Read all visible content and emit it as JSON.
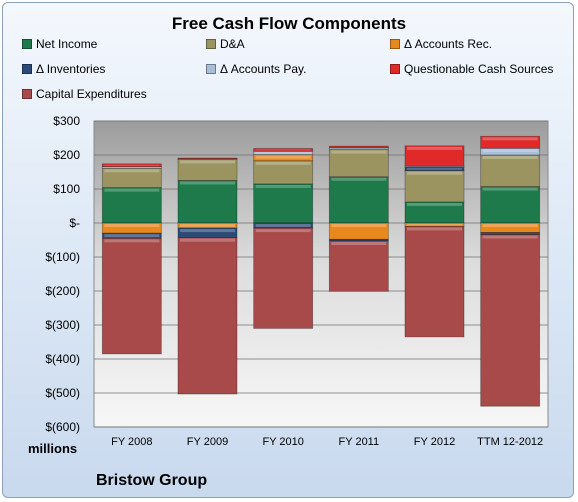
{
  "chart_data": {
    "type": "bar",
    "stacked": true,
    "title": "Free Cash Flow Components",
    "unit_label": "millions",
    "footer": "Bristow Group",
    "categories": [
      "FY 2008",
      "FY 2009",
      "FY 2010",
      "FY 2011",
      "FY 2012",
      "TTM 12-2012"
    ],
    "ylim": [
      -600,
      300
    ],
    "yticks": [
      300,
      200,
      100,
      0,
      -100,
      -200,
      -300,
      -400,
      -500,
      -600
    ],
    "ytick_labels": [
      "$300",
      "$200",
      "$100",
      "$-",
      "$(100)",
      "$(200)",
      "$(300)",
      "$(400)",
      "$(500)",
      "$(600)"
    ],
    "grid": true,
    "legend_position": "top",
    "series": [
      {
        "name": "Net Income",
        "color": "#1e7a4a",
        "values": [
          104,
          125,
          115,
          136,
          62,
          107
        ]
      },
      {
        "name": "D&A",
        "color": "#9b9460",
        "values": [
          57,
          62,
          68,
          80,
          92,
          93
        ]
      },
      {
        "name": "Δ Accounts Rec.",
        "color": "#e8891e",
        "values": [
          -30,
          -15,
          18,
          -48,
          -10,
          -28
        ]
      },
      {
        "name": "Δ Inventories",
        "color": "#2c4a78",
        "values": [
          -15,
          -28,
          -15,
          -5,
          10,
          -6
        ]
      },
      {
        "name": "Δ Accounts Pay.",
        "color": "#a9bcd8",
        "values": [
          5,
          2,
          10,
          5,
          3,
          20
        ]
      },
      {
        "name": "Questionable Cash Sources",
        "color": "#e02a2a",
        "values": [
          8,
          2,
          8,
          5,
          60,
          35
        ]
      },
      {
        "name": "Capital Expenditures",
        "color": "#a84a4a",
        "values": [
          -340,
          -460,
          -295,
          -148,
          -325,
          -505
        ]
      }
    ]
  }
}
